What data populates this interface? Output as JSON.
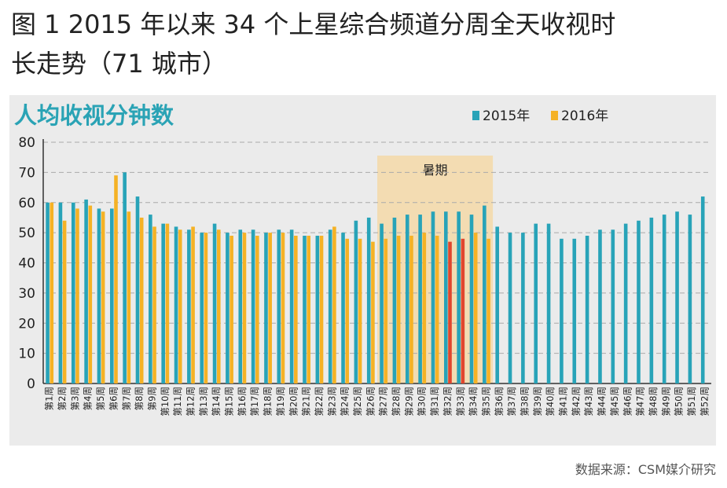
{
  "page": {
    "title_lines": [
      "图 1 2015 年以来 34 个上星综合频道分周全天收视时",
      "长走势（71 城市）"
    ],
    "source": "数据来源：CSM媒介研究"
  },
  "chart_data": {
    "type": "bar",
    "title": "人均收视分钟数",
    "categories": [
      "第1周",
      "第2周",
      "第3周",
      "第4周",
      "第5周",
      "第6周",
      "第7周",
      "第8周",
      "第9周",
      "第10周",
      "第11周",
      "第12周",
      "第13周",
      "第14周",
      "第15周",
      "第16周",
      "第17周",
      "第18周",
      "第19周",
      "第20周",
      "第21周",
      "第22周",
      "第23周",
      "第24周",
      "第25周",
      "第26周",
      "第27周",
      "第28周",
      "第29周",
      "第30周",
      "第31周",
      "第32周",
      "第33周",
      "第34周",
      "第35周",
      "第36周",
      "第37周",
      "第38周",
      "第39周",
      "第40周",
      "第41周",
      "第42周",
      "第43周",
      "第44周",
      "第45周",
      "第46周",
      "第47周",
      "第48周",
      "第49周",
      "第50周",
      "第51周",
      "第52周"
    ],
    "series": [
      {
        "name": "2015年",
        "color": "#28a3b8",
        "values": [
          60,
          60,
          60,
          61,
          58,
          58,
          70,
          62,
          56,
          53,
          52,
          51,
          50,
          53,
          50,
          51,
          51,
          50,
          51,
          51,
          49,
          49,
          51,
          50,
          54,
          55,
          53,
          55,
          56,
          56,
          57,
          57,
          57,
          56,
          59,
          52,
          50,
          50,
          53,
          53,
          48,
          48,
          49,
          51,
          51,
          53,
          54,
          55,
          56,
          57,
          56,
          62
        ]
      },
      {
        "name": "2016年",
        "color": "#f5b225",
        "values": [
          60,
          54,
          58,
          59,
          57,
          69,
          57,
          55,
          52,
          53,
          51,
          52,
          50,
          51,
          49,
          50,
          49,
          50,
          50,
          49,
          49,
          49,
          52,
          48,
          48,
          47,
          48,
          49,
          49,
          50,
          49,
          47,
          48,
          50,
          48,
          null,
          null,
          null,
          null,
          null,
          null,
          null,
          null,
          null,
          null,
          null,
          null,
          null,
          null,
          null,
          null,
          null
        ]
      }
    ],
    "highlight_color": "#e0462e",
    "highlight_points": [
      {
        "series": 1,
        "index": 31
      },
      {
        "series": 1,
        "index": 32
      }
    ],
    "ylim": [
      0,
      80
    ],
    "yticks": [
      0,
      10,
      20,
      30,
      40,
      50,
      60,
      70,
      80
    ],
    "grid": true,
    "legend_position": "top-right",
    "shaded_region": {
      "label": "暑期",
      "from_index": 26,
      "to_index": 34,
      "color": "#f5d9a8"
    }
  }
}
